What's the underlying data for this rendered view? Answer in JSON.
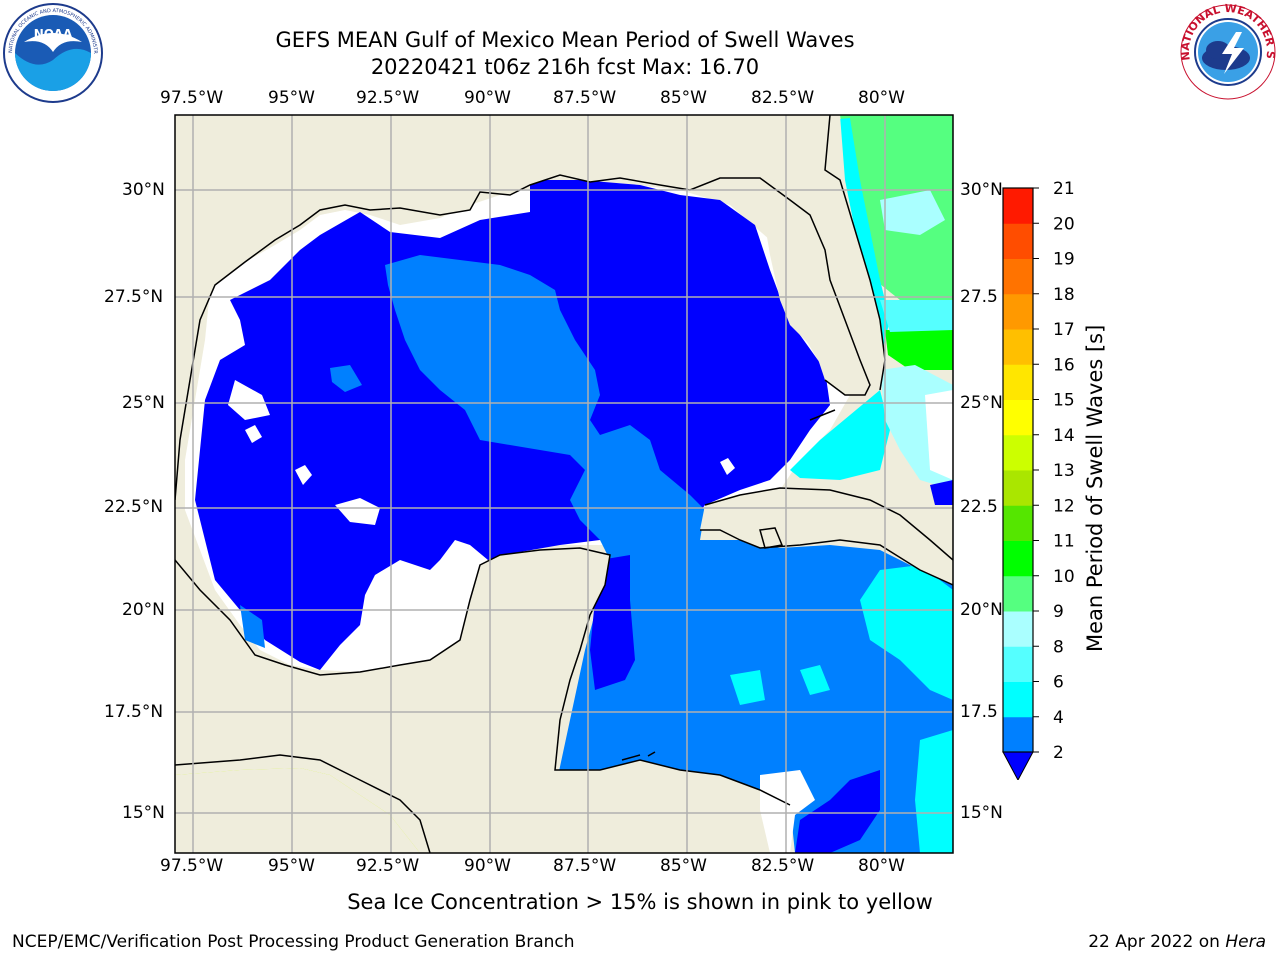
{
  "header": {
    "title_line1": "GEFS MEAN Gulf of Mexico Mean Period of Swell Waves",
    "title_line2": "20220421 t06z 216h fcst   Max: 16.70"
  },
  "logos": {
    "left": {
      "name": "noaa-logo",
      "text": "NOAA",
      "ring_text": "NATIONAL OCEANIC AND ATMOSPHERIC ADMINISTRATION · U.S. DEPARTMENT OF COMMERCE"
    },
    "right": {
      "name": "nws-logo",
      "ring_text": "NATIONAL WEATHER SERVICE"
    }
  },
  "map": {
    "lon_ticks": [
      "97.5°W",
      "95°W",
      "92.5°W",
      "90°W",
      "87.5°W",
      "85°W",
      "82.5°W",
      "80°W"
    ],
    "lat_ticks": [
      "30°N",
      "27.5°N",
      "25°N",
      "22.5°N",
      "20°N",
      "17.5°N",
      "15°N"
    ],
    "lat_ticks_right": [
      "30°N",
      "27.5",
      "25°N",
      "22.5",
      "20°N",
      "17.5",
      "15°N"
    ],
    "lon_range": [
      -98,
      -78.3
    ],
    "lat_range": [
      14,
      31.6
    ],
    "colors": {
      "land": "#efeddc",
      "no_data": "#ffffff",
      "coast": "#000000",
      "grid": "#b0b0b0"
    }
  },
  "colorbar": {
    "label": "Mean Period of Swell Waves [s]",
    "ticks": [
      "2",
      "4",
      "6",
      "8",
      "9",
      "10",
      "11",
      "12",
      "13",
      "14",
      "15",
      "16",
      "17",
      "18",
      "19",
      "20",
      "21"
    ],
    "colors": [
      "#0080ff",
      "#00ffff",
      "#55ffff",
      "#aaffff",
      "#55ff80",
      "#00ff00",
      "#55e600",
      "#aae600",
      "#ccff00",
      "#ffff00",
      "#ffe600",
      "#ffbf00",
      "#ff9900",
      "#ff7300",
      "#ff4d00",
      "#ff1a00"
    ],
    "under_color": "#0000ff"
  },
  "footer": {
    "caption": "Sea Ice Concentration > 15% is shown in pink to yellow",
    "credit": "NCEP/EMC/Verification Post Processing Product Generation Branch",
    "date": "22 Apr 2022 on ",
    "machine": "Hera"
  }
}
